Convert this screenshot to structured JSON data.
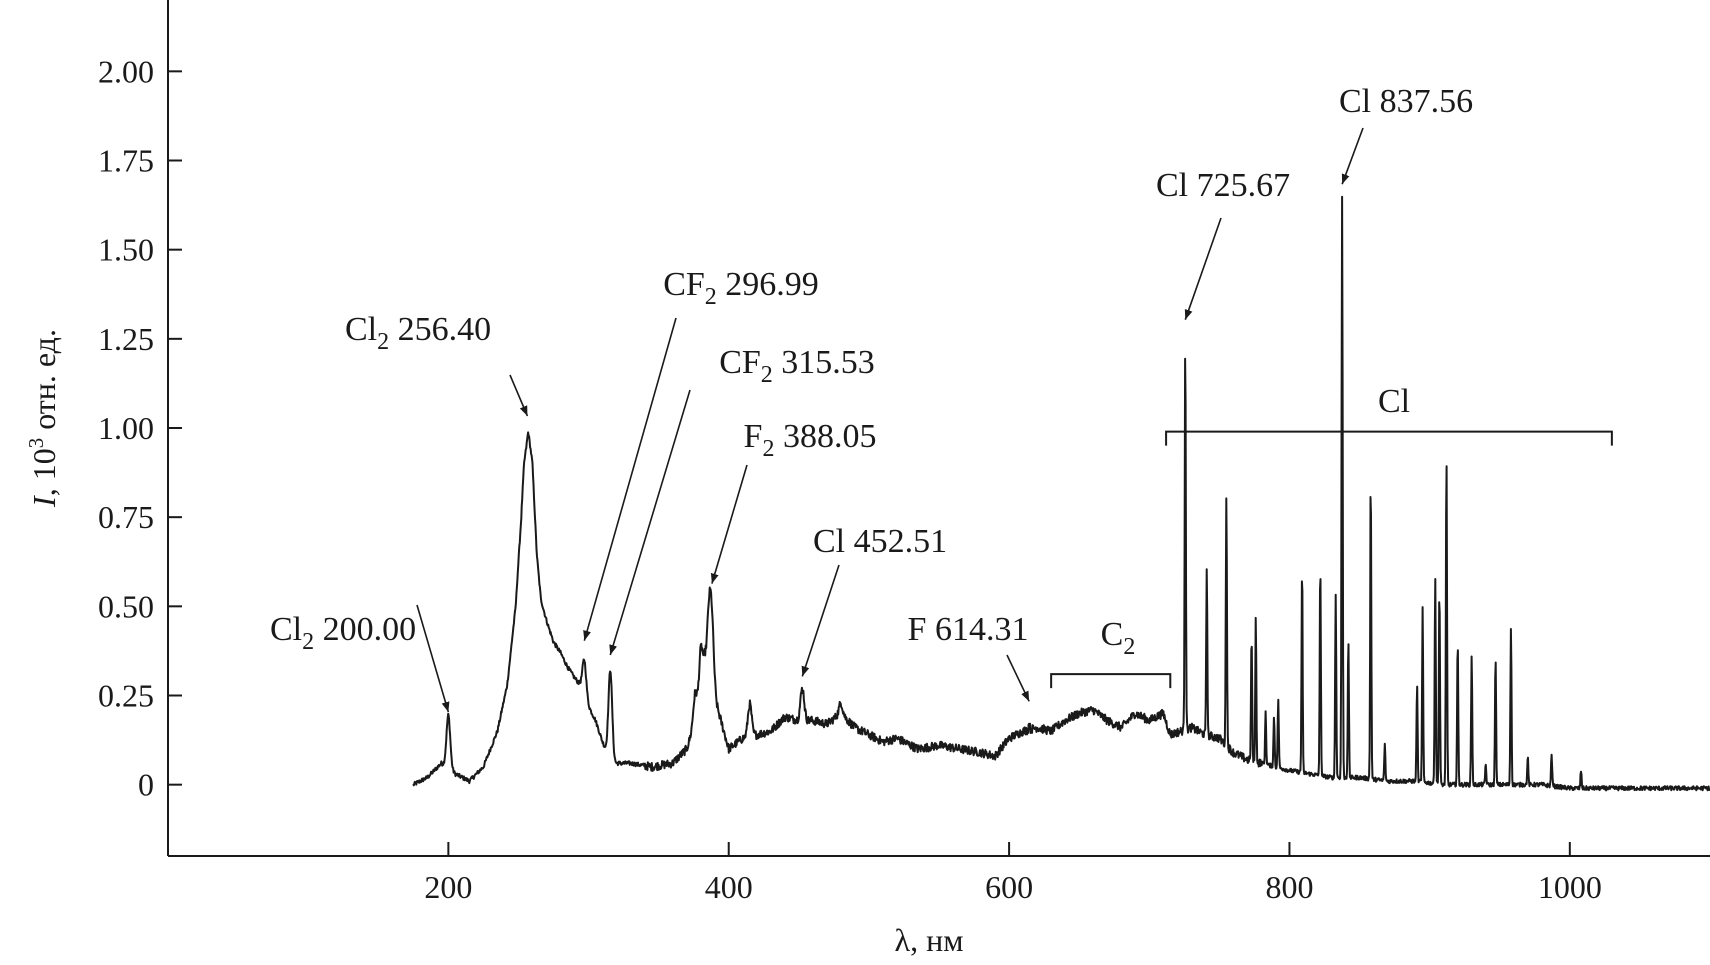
{
  "chart_data": {
    "type": "line",
    "xlabel": "λ, нм",
    "ylabel": {
      "var": "I",
      "rest": ", 10",
      "sup": "3",
      "unit": " отн. ед."
    },
    "xlim": [
      0,
      1100
    ],
    "ylim": [
      -0.2,
      2.2
    ],
    "x_ticks": [
      200,
      400,
      600,
      800,
      1000
    ],
    "y_ticks": [
      {
        "value": 0.0,
        "label": "0"
      },
      {
        "value": 0.25,
        "label": "0.25"
      },
      {
        "value": 0.5,
        "label": "0.50"
      },
      {
        "value": 0.75,
        "label": "0.75"
      },
      {
        "value": 1.0,
        "label": "1.00"
      },
      {
        "value": 1.25,
        "label": "1.25"
      },
      {
        "value": 1.5,
        "label": "1.50"
      },
      {
        "value": 1.75,
        "label": "1.75"
      },
      {
        "value": 2.0,
        "label": "2.00"
      }
    ],
    "grid": false,
    "series": [
      {
        "baseline": [
          [
            175,
            0.0
          ],
          [
            185,
            0.02
          ],
          [
            195,
            0.06
          ],
          [
            205,
            0.03
          ],
          [
            215,
            0.01
          ],
          [
            225,
            0.05
          ],
          [
            235,
            0.15
          ],
          [
            242,
            0.28
          ],
          [
            248,
            0.5
          ],
          [
            252,
            0.75
          ],
          [
            254,
            0.9
          ],
          [
            257,
            0.99
          ],
          [
            260,
            0.9
          ],
          [
            263,
            0.65
          ],
          [
            266,
            0.52
          ],
          [
            270,
            0.46
          ],
          [
            275,
            0.4
          ],
          [
            280,
            0.37
          ],
          [
            285,
            0.33
          ],
          [
            290,
            0.3
          ],
          [
            294,
            0.28
          ],
          [
            300,
            0.22
          ],
          [
            305,
            0.18
          ],
          [
            310,
            0.12
          ],
          [
            314,
            0.08
          ],
          [
            318,
            0.06
          ],
          [
            330,
            0.06
          ],
          [
            345,
            0.05
          ],
          [
            360,
            0.06
          ],
          [
            370,
            0.1
          ],
          [
            378,
            0.2
          ],
          [
            383,
            0.35
          ],
          [
            393,
            0.2
          ],
          [
            400,
            0.1
          ],
          [
            410,
            0.13
          ],
          [
            420,
            0.14
          ],
          [
            430,
            0.15
          ],
          [
            440,
            0.19
          ],
          [
            450,
            0.18
          ],
          [
            460,
            0.18
          ],
          [
            470,
            0.17
          ],
          [
            480,
            0.2
          ],
          [
            490,
            0.16
          ],
          [
            500,
            0.14
          ],
          [
            510,
            0.12
          ],
          [
            520,
            0.13
          ],
          [
            535,
            0.1
          ],
          [
            550,
            0.11
          ],
          [
            565,
            0.1
          ],
          [
            580,
            0.09
          ],
          [
            590,
            0.08
          ],
          [
            600,
            0.13
          ],
          [
            610,
            0.15
          ],
          [
            620,
            0.16
          ],
          [
            630,
            0.15
          ],
          [
            640,
            0.18
          ],
          [
            650,
            0.2
          ],
          [
            660,
            0.21
          ],
          [
            670,
            0.18
          ],
          [
            680,
            0.16
          ],
          [
            690,
            0.2
          ],
          [
            700,
            0.18
          ],
          [
            710,
            0.2
          ],
          [
            715,
            0.14
          ],
          [
            730,
            0.16
          ],
          [
            740,
            0.14
          ],
          [
            750,
            0.13
          ],
          [
            760,
            0.09
          ],
          [
            770,
            0.07
          ],
          [
            780,
            0.06
          ],
          [
            790,
            0.05
          ],
          [
            800,
            0.04
          ],
          [
            815,
            0.03
          ],
          [
            830,
            0.02
          ],
          [
            850,
            0.02
          ],
          [
            870,
            0.01
          ],
          [
            890,
            0.01
          ],
          [
            910,
            0.0
          ],
          [
            930,
            0.0
          ],
          [
            950,
            0.0
          ],
          [
            980,
            0.0
          ],
          [
            1000,
            -0.01
          ],
          [
            1030,
            -0.01
          ],
          [
            1060,
            -0.01
          ],
          [
            1100,
            -0.01
          ]
        ],
        "peaks": [
          [
            200.0,
            0.15
          ],
          [
            296.99,
            0.1
          ],
          [
            315.53,
            0.25
          ],
          [
            376,
            0.08
          ],
          [
            380,
            0.12
          ],
          [
            386,
            0.17
          ],
          [
            388.05,
            0.17
          ],
          [
            415,
            0.09
          ],
          [
            452.51,
            0.09
          ],
          [
            480,
            0.03
          ],
          [
            614.31,
            0.02
          ],
          [
            725.67,
            1.1
          ],
          [
            741,
            0.47
          ],
          [
            755,
            0.71
          ],
          [
            773,
            0.35
          ],
          [
            776,
            0.4
          ],
          [
            783,
            0.15
          ],
          [
            789,
            0.14
          ],
          [
            792,
            0.19
          ],
          [
            809,
            0.58
          ],
          [
            822,
            0.59
          ],
          [
            833,
            0.51
          ],
          [
            837.56,
            1.63
          ],
          [
            842,
            0.38
          ],
          [
            858,
            0.85
          ],
          [
            868,
            0.1
          ],
          [
            891,
            0.27
          ],
          [
            895,
            0.49
          ],
          [
            904,
            0.58
          ],
          [
            907,
            0.55
          ],
          [
            912,
            0.92
          ],
          [
            920,
            0.4
          ],
          [
            930,
            0.36
          ],
          [
            940,
            0.06
          ],
          [
            947,
            0.36
          ],
          [
            958,
            0.44
          ],
          [
            970,
            0.08
          ],
          [
            987,
            0.09
          ],
          [
            1008,
            0.05
          ]
        ]
      }
    ],
    "annotations": [
      {
        "species": "Cl",
        "sub": "2",
        "wavelength": "200.00",
        "x": 200.0,
        "y": 0.17
      },
      {
        "species": "Cl",
        "sub": "2",
        "wavelength": "256.40",
        "x": 256.4,
        "y": 1.0
      },
      {
        "species": "CF",
        "sub": "2",
        "wavelength": "296.99",
        "x": 297.0,
        "y": 0.37
      },
      {
        "species": "CF",
        "sub": "2",
        "wavelength": "315.53",
        "x": 315.5,
        "y": 0.33
      },
      {
        "species": "F",
        "sub": "2",
        "wavelength": "388.05",
        "x": 388.0,
        "y": 0.53
      },
      {
        "species": "Cl",
        "sub": "",
        "wavelength": "452.51",
        "x": 452.5,
        "y": 0.27
      },
      {
        "species": "F",
        "sub": "",
        "wavelength": "614.31",
        "x": 614.3,
        "y": 0.2
      },
      {
        "species": "Cl",
        "sub": "",
        "wavelength": "725.67",
        "x": 725.7,
        "y": 1.27
      },
      {
        "species": "Cl",
        "sub": "",
        "wavelength": "837.56",
        "x": 837.6,
        "y": 1.65
      }
    ],
    "brackets": [
      {
        "label": "C",
        "sub": "2",
        "x1": 630,
        "x2": 715,
        "y": 0.31
      },
      {
        "label": "Cl",
        "sub": "",
        "x1": 712,
        "x2": 1030,
        "y": 0.99
      }
    ]
  }
}
